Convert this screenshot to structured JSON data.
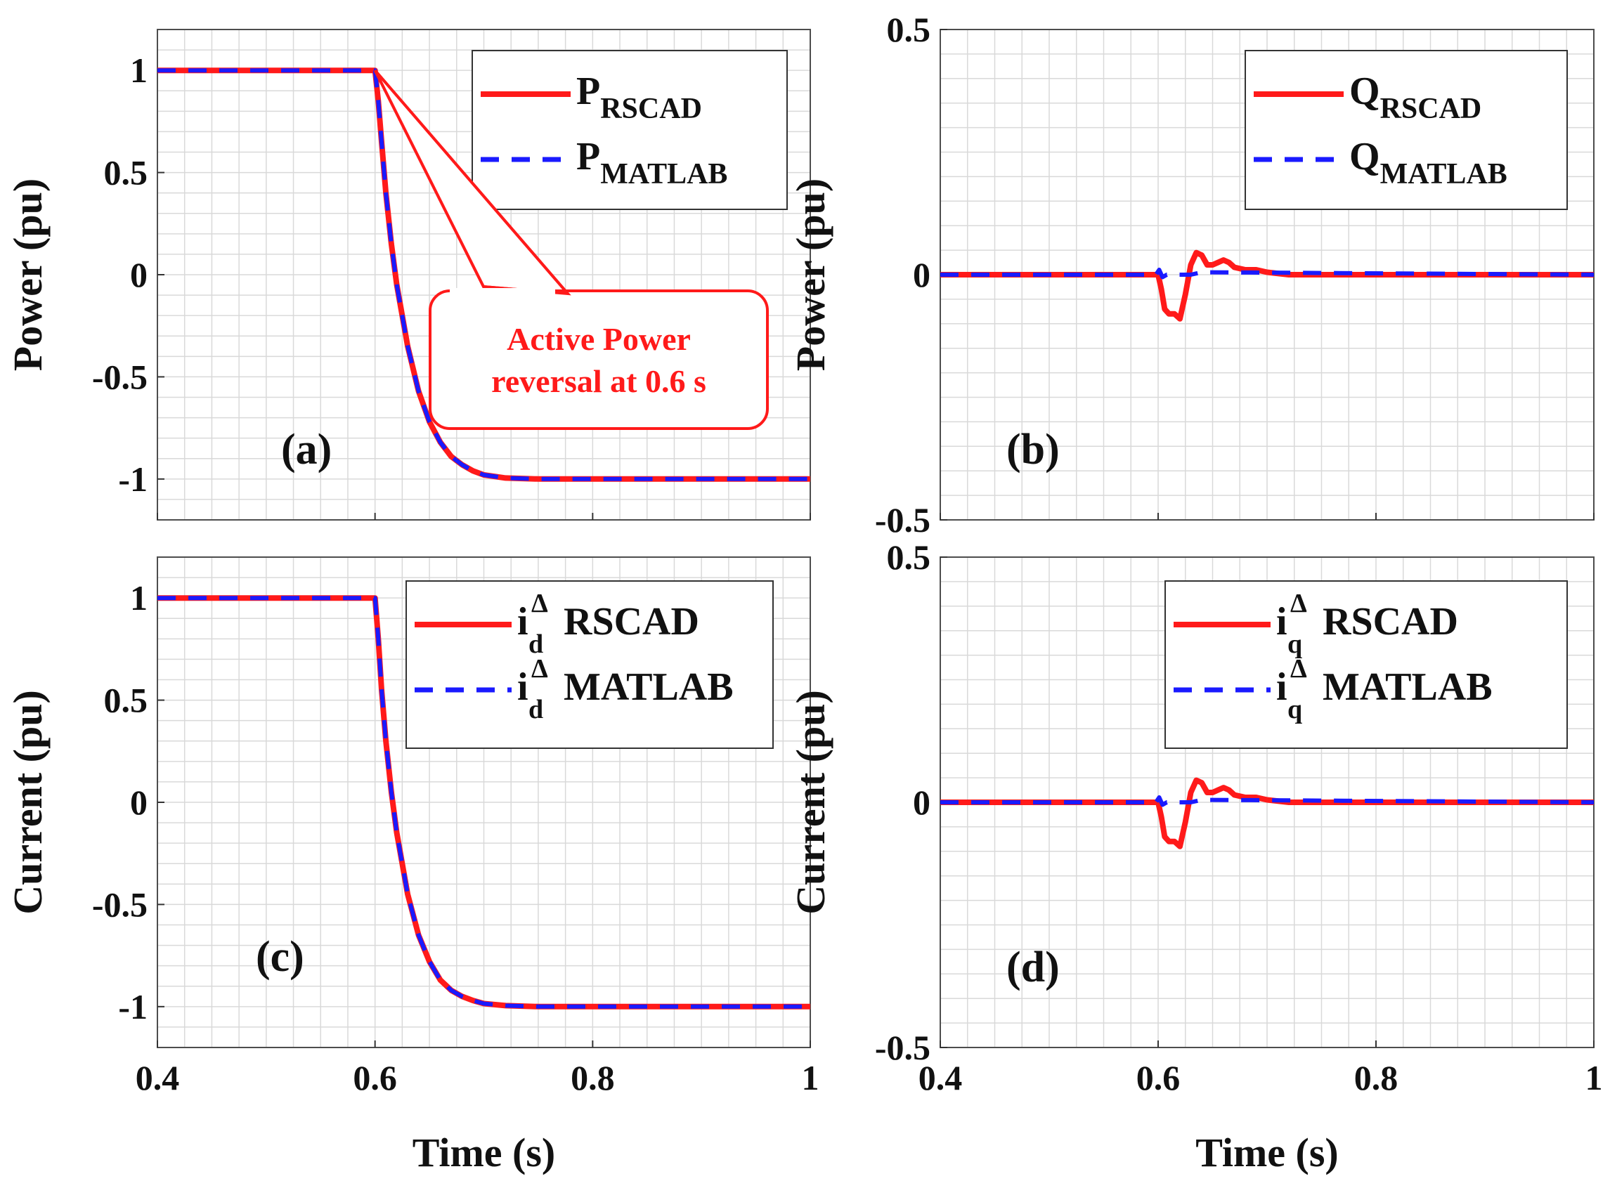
{
  "figure": {
    "time_label": "Time (s)",
    "power_label": "Power (pu)",
    "current_label": "Current (pu)"
  },
  "colors": {
    "rscad": "#ff1a1a",
    "matlab": "#1a1aff",
    "grid": "#d9d9d9",
    "annotation": "#ff1a1a"
  },
  "chart_data": [
    {
      "type": "line",
      "panel_label": "(a)",
      "xlabel": "",
      "ylabel": "Power (pu)",
      "xlim": [
        0.4,
        1.0
      ],
      "ylim": [
        -1.2,
        1.2
      ],
      "x_ticks": [
        0.4,
        0.6,
        0.8,
        1.0
      ],
      "y_ticks": [
        -1,
        -0.5,
        0,
        0.5,
        1
      ],
      "y_tick_labels": [
        "-1",
        "-0.5",
        "0",
        "0.5",
        "1"
      ],
      "x_tick_labels": [],
      "grid": true,
      "legend_position": "top-right",
      "annotation": {
        "line1": "Active Power",
        "line2": "reversal at 0.6 s",
        "points_to": [
          0.6,
          1.0
        ]
      },
      "series": [
        {
          "name": "P",
          "sub": "RSCAD",
          "style": "solid",
          "x": [
            0.4,
            0.6,
            0.603,
            0.606,
            0.61,
            0.615,
            0.62,
            0.63,
            0.64,
            0.65,
            0.66,
            0.67,
            0.68,
            0.69,
            0.7,
            0.72,
            0.75,
            1.0
          ],
          "y": [
            1,
            1,
            0.85,
            0.65,
            0.4,
            0.15,
            -0.05,
            -0.35,
            -0.57,
            -0.72,
            -0.82,
            -0.89,
            -0.93,
            -0.96,
            -0.98,
            -0.995,
            -1,
            -1
          ]
        },
        {
          "name": "P",
          "sub": "MATLAB",
          "style": "dashed",
          "x": [
            0.4,
            0.6,
            0.603,
            0.606,
            0.61,
            0.615,
            0.62,
            0.63,
            0.64,
            0.65,
            0.66,
            0.67,
            0.68,
            0.69,
            0.7,
            0.72,
            0.75,
            1.0
          ],
          "y": [
            1,
            1,
            0.85,
            0.65,
            0.4,
            0.15,
            -0.05,
            -0.35,
            -0.57,
            -0.72,
            -0.82,
            -0.89,
            -0.93,
            -0.96,
            -0.98,
            -0.995,
            -1,
            -1
          ]
        }
      ]
    },
    {
      "type": "line",
      "panel_label": "(b)",
      "xlabel": "",
      "ylabel": "Power (pu)",
      "xlim": [
        0.4,
        1.0
      ],
      "ylim": [
        -0.5,
        0.5
      ],
      "x_ticks": [
        0.4,
        0.6,
        0.8,
        1.0
      ],
      "y_ticks": [
        -0.5,
        0,
        0.5
      ],
      "y_tick_labels": [
        "-0.5",
        "0",
        "0.5"
      ],
      "x_tick_labels": [],
      "grid": true,
      "legend_position": "top-right",
      "series": [
        {
          "name": "Q",
          "sub": "RSCAD",
          "style": "solid",
          "x": [
            0.4,
            0.6,
            0.603,
            0.606,
            0.61,
            0.615,
            0.62,
            0.625,
            0.63,
            0.635,
            0.64,
            0.645,
            0.65,
            0.655,
            0.66,
            0.665,
            0.67,
            0.68,
            0.69,
            0.7,
            0.72,
            1.0
          ],
          "y": [
            0,
            0,
            -0.03,
            -0.07,
            -0.08,
            -0.08,
            -0.09,
            -0.04,
            0.02,
            0.045,
            0.04,
            0.02,
            0.02,
            0.025,
            0.03,
            0.025,
            0.015,
            0.01,
            0.01,
            0.005,
            0,
            0
          ]
        },
        {
          "name": "Q",
          "sub": "MATLAB",
          "style": "dashed",
          "x": [
            0.4,
            0.598,
            0.601,
            0.604,
            0.608,
            0.63,
            0.64,
            1.0
          ],
          "y": [
            0,
            0,
            0.01,
            -0.005,
            0,
            0,
            0.005,
            0
          ]
        }
      ]
    },
    {
      "type": "line",
      "panel_label": "(c)",
      "xlabel": "Time (s)",
      "ylabel": "Current (pu)",
      "xlim": [
        0.4,
        1.0
      ],
      "ylim": [
        -1.2,
        1.2
      ],
      "x_ticks": [
        0.4,
        0.6,
        0.8,
        1.0
      ],
      "x_tick_labels": [
        "0.4",
        "0.6",
        "0.8",
        "1"
      ],
      "y_ticks": [
        -1,
        -0.5,
        0,
        0.5,
        1
      ],
      "y_tick_labels": [
        "-1",
        "-0.5",
        "0",
        "0.5",
        "1"
      ],
      "grid": true,
      "legend_position": "top-right",
      "series": [
        {
          "name": "i",
          "sub": "d",
          "sup": "Δ",
          "suffix": "RSCAD",
          "style": "solid",
          "x": [
            0.4,
            0.6,
            0.603,
            0.606,
            0.61,
            0.615,
            0.62,
            0.63,
            0.64,
            0.65,
            0.66,
            0.67,
            0.68,
            0.69,
            0.7,
            0.72,
            0.75,
            1.0
          ],
          "y": [
            1,
            1,
            0.8,
            0.55,
            0.3,
            0.05,
            -0.15,
            -0.45,
            -0.65,
            -0.78,
            -0.87,
            -0.92,
            -0.95,
            -0.97,
            -0.985,
            -0.995,
            -1,
            -1
          ]
        },
        {
          "name": "i",
          "sub": "d",
          "sup": "Δ",
          "suffix": "MATLAB",
          "style": "dashed",
          "x": [
            0.4,
            0.6,
            0.603,
            0.606,
            0.61,
            0.615,
            0.62,
            0.63,
            0.64,
            0.65,
            0.66,
            0.67,
            0.68,
            0.69,
            0.7,
            0.72,
            0.75,
            1.0
          ],
          "y": [
            1,
            1,
            0.8,
            0.55,
            0.3,
            0.05,
            -0.15,
            -0.45,
            -0.65,
            -0.78,
            -0.87,
            -0.92,
            -0.95,
            -0.97,
            -0.985,
            -0.995,
            -1,
            -1
          ]
        }
      ]
    },
    {
      "type": "line",
      "panel_label": "(d)",
      "xlabel": "Time (s)",
      "ylabel": "Current (pu)",
      "xlim": [
        0.4,
        1.0
      ],
      "ylim": [
        -0.5,
        0.5
      ],
      "x_ticks": [
        0.4,
        0.6,
        0.8,
        1.0
      ],
      "x_tick_labels": [
        "0.4",
        "0.6",
        "0.8",
        "1"
      ],
      "y_ticks": [
        -0.5,
        0,
        0.5
      ],
      "y_tick_labels": [
        "-0.5",
        "0",
        "0.5"
      ],
      "grid": true,
      "legend_position": "top-right",
      "series": [
        {
          "name": "i",
          "sub": "q",
          "sup": "Δ",
          "suffix": "RSCAD",
          "style": "solid",
          "x": [
            0.4,
            0.6,
            0.603,
            0.606,
            0.61,
            0.615,
            0.62,
            0.625,
            0.63,
            0.635,
            0.64,
            0.645,
            0.65,
            0.655,
            0.66,
            0.665,
            0.67,
            0.68,
            0.69,
            0.7,
            0.72,
            1.0
          ],
          "y": [
            0,
            0,
            -0.03,
            -0.07,
            -0.08,
            -0.08,
            -0.09,
            -0.04,
            0.02,
            0.045,
            0.04,
            0.02,
            0.02,
            0.025,
            0.03,
            0.025,
            0.015,
            0.01,
            0.01,
            0.005,
            0,
            0
          ]
        },
        {
          "name": "i",
          "sub": "q",
          "sup": "Δ",
          "suffix": "MATLAB",
          "style": "dashed",
          "x": [
            0.4,
            0.598,
            0.601,
            0.604,
            0.608,
            0.63,
            0.64,
            1.0
          ],
          "y": [
            0,
            0,
            0.01,
            -0.005,
            0,
            0,
            0.005,
            0
          ]
        }
      ]
    }
  ]
}
